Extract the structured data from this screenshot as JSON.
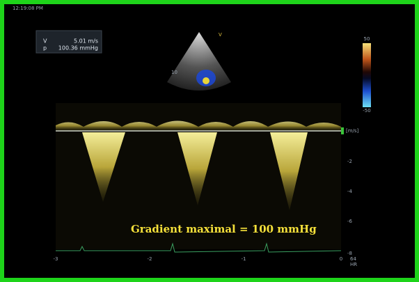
{
  "clock": "12:19:08 PM",
  "measurements": {
    "rows": [
      {
        "label": "V",
        "value": "5.01 m/s"
      },
      {
        "label": "p",
        "value": "100.36 mmHg"
      }
    ]
  },
  "sector": {
    "marker": "V",
    "depth": "10"
  },
  "color_scale": {
    "top": "50",
    "bottom": "-50"
  },
  "spectral": {
    "unit": "[m/s]",
    "velocity_ticks": [
      "-2",
      "-4",
      "-6",
      "-8"
    ],
    "time_ticks": [
      "-3",
      "-2",
      "-1",
      "0"
    ],
    "heart_rate": "64",
    "heart_rate_label": "HR"
  },
  "annotation": "Gradient maximal = 100 mmHg"
}
